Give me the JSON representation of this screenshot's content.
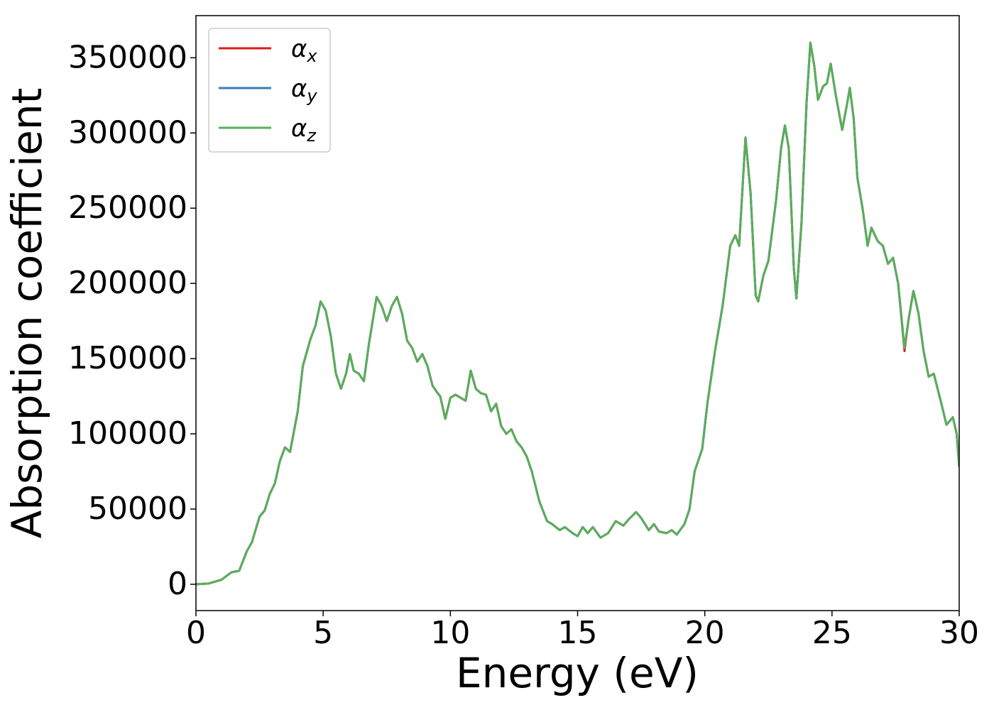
{
  "chart_data": {
    "type": "line",
    "xlabel": "Energy (eV)",
    "ylabel": "Absorption coefficient",
    "x": [
      0,
      0.5,
      1,
      1.4,
      1.7,
      2,
      2.2,
      2.5,
      2.7,
      2.9,
      3.1,
      3.3,
      3.5,
      3.7,
      4.0,
      4.2,
      4.5,
      4.7,
      4.9,
      5.1,
      5.3,
      5.5,
      5.7,
      5.9,
      6.05,
      6.2,
      6.4,
      6.6,
      6.8,
      7.1,
      7.3,
      7.5,
      7.7,
      7.9,
      8.1,
      8.3,
      8.5,
      8.7,
      8.9,
      9.1,
      9.3,
      9.5,
      9.6,
      9.8,
      10.0,
      10.2,
      10.4,
      10.6,
      10.8,
      11.0,
      11.2,
      11.4,
      11.6,
      11.8,
      12.0,
      12.2,
      12.4,
      12.6,
      12.8,
      13.0,
      13.2,
      13.5,
      13.8,
      14.0,
      14.3,
      14.5,
      14.8,
      15.0,
      15.2,
      15.4,
      15.6,
      15.9,
      16.2,
      16.5,
      16.8,
      17.0,
      17.3,
      17.5,
      17.8,
      18.0,
      18.2,
      18.5,
      18.7,
      18.9,
      19.2,
      19.4,
      19.6,
      19.9,
      20.1,
      20.4,
      20.7,
      21.0,
      21.2,
      21.35,
      21.6,
      21.8,
      22.0,
      22.1,
      22.3,
      22.5,
      22.8,
      23.0,
      23.15,
      23.3,
      23.5,
      23.6,
      23.8,
      24.0,
      24.15,
      24.3,
      24.45,
      24.65,
      24.8,
      24.95,
      25.15,
      25.4,
      25.6,
      25.7,
      25.85,
      26.0,
      26.2,
      26.4,
      26.55,
      26.8,
      27.0,
      27.2,
      27.4,
      27.6,
      27.85,
      28.0,
      28.2,
      28.4,
      28.6,
      28.8,
      29.0,
      29.3,
      29.5,
      29.75,
      29.9,
      30.0
    ],
    "series": [
      {
        "name": "αx",
        "color": "#e41a1c",
        "values": [
          0,
          500,
          3000,
          8000,
          9000,
          22000,
          28000,
          45000,
          49000,
          60000,
          67000,
          82000,
          91000,
          88000,
          115000,
          145000,
          163000,
          172000,
          188000,
          182000,
          165000,
          140000,
          130000,
          140000,
          153000,
          142000,
          140000,
          135000,
          160000,
          191000,
          185000,
          175000,
          185000,
          191000,
          180000,
          162000,
          157000,
          148000,
          153000,
          145000,
          132000,
          127000,
          125000,
          110000,
          124000,
          126000,
          124000,
          122000,
          142000,
          130000,
          127000,
          126000,
          115000,
          120000,
          105000,
          100000,
          103000,
          95000,
          91000,
          85000,
          75000,
          55000,
          42000,
          40000,
          36000,
          38000,
          34000,
          32000,
          38000,
          34000,
          38000,
          31000,
          34000,
          42000,
          39000,
          43000,
          48000,
          44000,
          36000,
          40000,
          35000,
          34000,
          36000,
          33000,
          40000,
          50000,
          75000,
          90000,
          120000,
          155000,
          185000,
          225000,
          232000,
          225000,
          297000,
          260000,
          192000,
          188000,
          205000,
          215000,
          255000,
          290000,
          305000,
          290000,
          210000,
          190000,
          240000,
          320000,
          360000,
          345000,
          322000,
          331000,
          333000,
          346000,
          325000,
          302000,
          320000,
          330000,
          310000,
          270000,
          250000,
          225000,
          237000,
          228000,
          225000,
          213000,
          217000,
          200000,
          155000,
          175000,
          195000,
          180000,
          155000,
          138000,
          140000,
          120000,
          106000,
          111000,
          100000,
          78000
        ]
      },
      {
        "name": "αy",
        "color": "#377eb8",
        "values": [
          0,
          500,
          3000,
          8000,
          9000,
          22000,
          28000,
          45000,
          49000,
          60000,
          67000,
          82000,
          91000,
          88000,
          115000,
          145000,
          163000,
          172000,
          188000,
          182000,
          165000,
          140000,
          130000,
          140000,
          153000,
          142000,
          140000,
          135000,
          160000,
          191000,
          185000,
          175000,
          185000,
          191000,
          180000,
          162000,
          157000,
          148000,
          153000,
          145000,
          132000,
          127000,
          125000,
          110000,
          124000,
          126000,
          124000,
          122000,
          142000,
          130000,
          127000,
          126000,
          115000,
          120000,
          105000,
          100000,
          103000,
          95000,
          91000,
          85000,
          75000,
          55000,
          42000,
          40000,
          36000,
          38000,
          34000,
          32000,
          38000,
          34000,
          38000,
          31000,
          34000,
          42000,
          39000,
          43000,
          48000,
          44000,
          36000,
          40000,
          35000,
          34000,
          36000,
          33000,
          40000,
          50000,
          75000,
          90000,
          120000,
          155000,
          185000,
          225000,
          232000,
          225000,
          297000,
          260000,
          192000,
          188000,
          205000,
          215000,
          255000,
          290000,
          305000,
          290000,
          210000,
          190000,
          240000,
          320000,
          360000,
          345000,
          322000,
          331000,
          333000,
          346000,
          325000,
          302000,
          320000,
          330000,
          310000,
          270000,
          250000,
          225000,
          237000,
          228000,
          225000,
          213000,
          217000,
          200000,
          157000,
          175000,
          195000,
          180000,
          155000,
          138000,
          140000,
          120000,
          106000,
          111000,
          100000,
          78000
        ]
      },
      {
        "name": "αz",
        "color": "#5aae5a",
        "values": [
          0,
          500,
          3000,
          8000,
          9000,
          22000,
          28000,
          45000,
          49000,
          60000,
          67000,
          82000,
          91000,
          88000,
          115000,
          145000,
          163000,
          172000,
          188000,
          182000,
          165000,
          140000,
          130000,
          140000,
          153000,
          142000,
          140000,
          135000,
          160000,
          191000,
          185000,
          175000,
          185000,
          191000,
          180000,
          162000,
          157000,
          148000,
          153000,
          145000,
          132000,
          127000,
          125000,
          110000,
          124000,
          126000,
          124000,
          122000,
          142000,
          130000,
          127000,
          126000,
          115000,
          120000,
          105000,
          100000,
          103000,
          95000,
          91000,
          85000,
          75000,
          55000,
          42000,
          40000,
          36000,
          38000,
          34000,
          32000,
          38000,
          34000,
          38000,
          31000,
          34000,
          42000,
          39000,
          43000,
          48000,
          44000,
          36000,
          40000,
          35000,
          34000,
          36000,
          33000,
          40000,
          50000,
          75000,
          90000,
          120000,
          155000,
          185000,
          225000,
          232000,
          225000,
          297000,
          260000,
          192000,
          188000,
          205000,
          215000,
          255000,
          290000,
          305000,
          290000,
          210000,
          190000,
          240000,
          320000,
          360000,
          345000,
          322000,
          331000,
          333000,
          346000,
          325000,
          302000,
          320000,
          330000,
          310000,
          270000,
          250000,
          225000,
          237000,
          228000,
          225000,
          213000,
          217000,
          200000,
          157000,
          175000,
          195000,
          180000,
          155000,
          138000,
          140000,
          120000,
          106000,
          111000,
          100000,
          78000
        ]
      }
    ],
    "xlim": [
      0,
      30
    ],
    "xticks": [
      0,
      5,
      10,
      15,
      20,
      25,
      30
    ],
    "ylim": [
      -17500,
      378000
    ],
    "yticks": [
      0,
      50000,
      100000,
      150000,
      200000,
      250000,
      300000,
      350000
    ],
    "legend": "upper left"
  }
}
